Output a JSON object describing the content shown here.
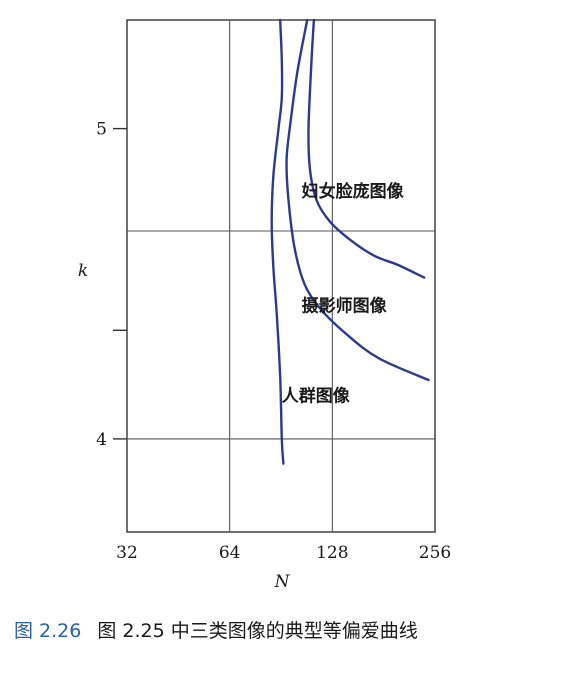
{
  "chart_data": {
    "type": "line",
    "title": "",
    "xlabel": "N",
    "ylabel": "k",
    "x_scale": "log2",
    "xlim": [
      32,
      256
    ],
    "ylim": [
      3.7,
      5.35
    ],
    "x_ticks": [
      {
        "value": 32,
        "label": "32"
      },
      {
        "value": 64,
        "label": "64"
      },
      {
        "value": 128,
        "label": "128"
      },
      {
        "value": 256,
        "label": "256"
      }
    ],
    "y_ticks": [
      {
        "value": 4.0,
        "label": "4"
      },
      {
        "value": 4.35,
        "label": ""
      },
      {
        "value": 5.0,
        "label": "5"
      }
    ],
    "h_gridlines": [
      4.0,
      4.67
    ],
    "v_gridlines": [
      64,
      128
    ],
    "grid": true,
    "line_color": "#2d3a8c",
    "series": [
      {
        "name": "妇女脸庞图像",
        "points": [
          [
            113,
            5.35
          ],
          [
            111,
            5.2
          ],
          [
            109,
            5.0
          ],
          [
            110,
            4.87
          ],
          [
            115,
            4.77
          ],
          [
            126,
            4.7
          ],
          [
            145,
            4.64
          ],
          [
            170,
            4.59
          ],
          [
            200,
            4.56
          ],
          [
            238,
            4.52
          ]
        ]
      },
      {
        "name": "摄影师图像",
        "points": [
          [
            108,
            5.35
          ],
          [
            101,
            5.18
          ],
          [
            96,
            5.0
          ],
          [
            94,
            4.9
          ],
          [
            95,
            4.78
          ],
          [
            99,
            4.62
          ],
          [
            106,
            4.5
          ],
          [
            118,
            4.42
          ],
          [
            140,
            4.34
          ],
          [
            175,
            4.26
          ],
          [
            245,
            4.19
          ]
        ]
      },
      {
        "name": "人群图像",
        "points": [
          [
            90,
            5.35
          ],
          [
            91,
            5.22
          ],
          [
            91,
            5.1
          ],
          [
            89,
            5.0
          ],
          [
            86,
            4.85
          ],
          [
            85,
            4.7
          ],
          [
            86,
            4.55
          ],
          [
            88,
            4.4
          ],
          [
            90,
            4.2
          ],
          [
            91,
            4.0
          ],
          [
            92,
            3.92
          ]
        ]
      }
    ]
  },
  "caption": {
    "number": "图 2.26",
    "text": "图 2.25 中三类图像的典型等偏爱曲线"
  }
}
